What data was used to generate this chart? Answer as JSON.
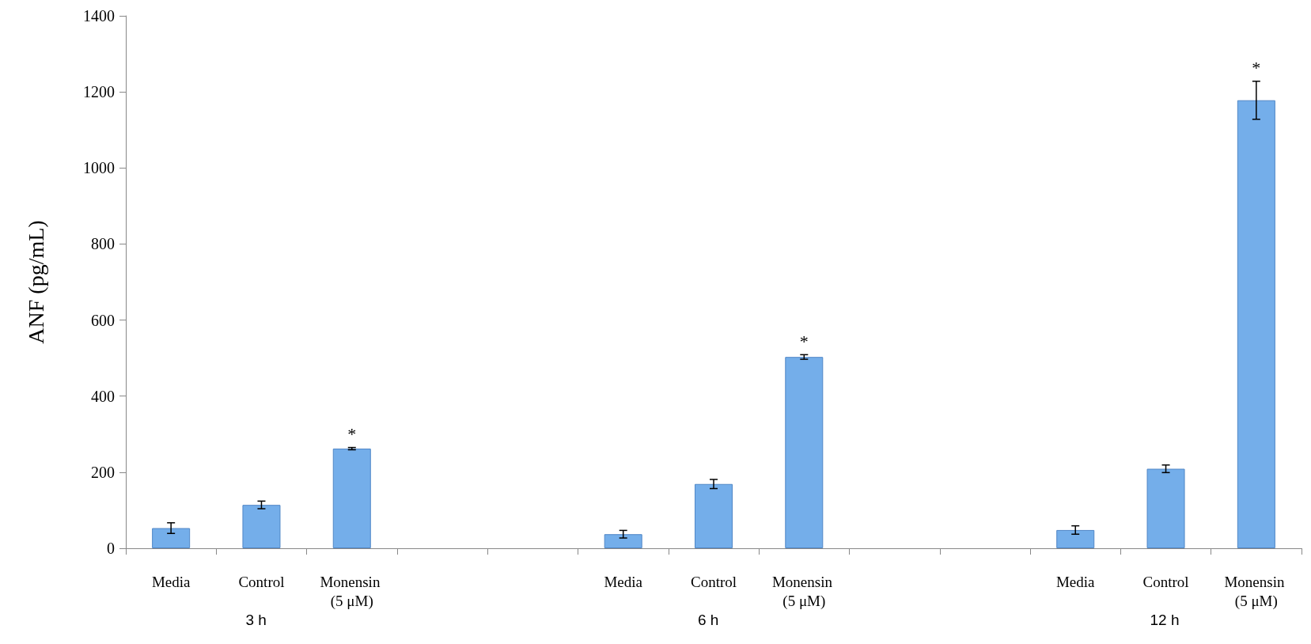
{
  "chart_data": {
    "type": "bar",
    "ylabel": "ANF (pg/mL)",
    "categories": [
      "Media",
      "Control",
      "Monensin (5 μM)",
      null,
      null,
      "Media",
      "Control",
      "Monensin (5 μM)",
      null,
      null,
      "Media",
      "Control",
      "Monensin (5 μM)"
    ],
    "values": [
      53,
      114,
      262,
      null,
      null,
      37,
      169,
      503,
      null,
      null,
      48,
      209,
      1178
    ],
    "errors": [
      14,
      10,
      3,
      null,
      null,
      10,
      12,
      6,
      null,
      null,
      11,
      10,
      50
    ],
    "value_labels": [
      null,
      null,
      "*",
      null,
      null,
      null,
      null,
      "*",
      null,
      null,
      null,
      null,
      "*"
    ],
    "color": "#74aeea",
    "ylim": [
      0,
      1400
    ],
    "yticks": [
      0,
      200,
      400,
      600,
      800,
      1000,
      1200,
      1400
    ],
    "grid": false,
    "annotations": [
      "3 h",
      "6 h",
      "12 h"
    ]
  }
}
